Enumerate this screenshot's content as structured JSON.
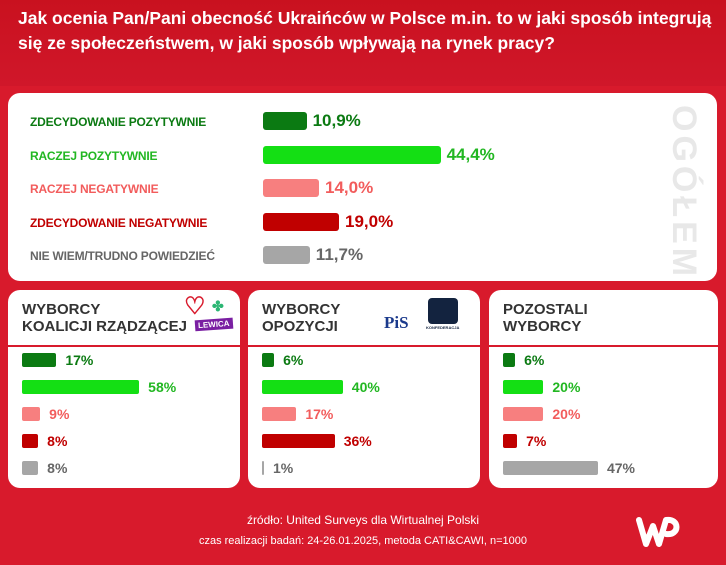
{
  "header": {
    "title": "Jak ocenia Pan/Pani obecność Ukraińców w Polsce m.in. to w jaki sposób integrują się ze społeczeństwem, w jaki sposób wpływają na rynek pracy?"
  },
  "colors": [
    "#0b7a12",
    "#14df14",
    "#f77f7f",
    "#c00000",
    "#a6a6a6"
  ],
  "text_colors": [
    "#0b7a12",
    "#22b722",
    "#f25c5c",
    "#c00000",
    "#666666"
  ],
  "chart_data": [
    {
      "type": "bar",
      "title": "OGÓŁEM",
      "categories": [
        "ZDECYDOWANIE POZYTYWNIE",
        "RACZEJ POZYTYWNIE",
        "RACZEJ NEGATYWNIE",
        "ZDECYDOWANIE NEGATYWNIE",
        "NIE WIEM/TRUDNO POWIEDZIEĆ"
      ],
      "values": [
        10.9,
        44.4,
        14.0,
        19.0,
        11.7
      ],
      "labels": [
        "10,9%",
        "44,4%",
        "14,0%",
        "19,0%",
        "11,7%"
      ]
    },
    {
      "type": "bar",
      "title": "WYBORCY KOALICJI RZĄDZĄCEJ",
      "values": [
        17,
        58,
        9,
        8,
        8
      ],
      "labels": [
        "17%",
        "58%",
        "9%",
        "8%",
        "8%"
      ]
    },
    {
      "type": "bar",
      "title": "WYBORCY OPOZYCJI",
      "values": [
        6,
        40,
        17,
        36,
        1
      ],
      "labels": [
        "6%",
        "40%",
        "17%",
        "36%",
        "1%"
      ]
    },
    {
      "type": "bar",
      "title": "POZOSTALI WYBORCY",
      "values": [
        6,
        20,
        20,
        7,
        47
      ],
      "labels": [
        "6%",
        "20%",
        "20%",
        "7%",
        "47%"
      ]
    }
  ],
  "panels": [
    {
      "title1": "WYBORCY",
      "title2": "KOALICJI RZĄDZĄCEJ",
      "logos": [
        "LEWICA"
      ]
    },
    {
      "title1": "WYBORCY",
      "title2": "OPOZYCJI",
      "logos": [
        "PiS",
        "KONFEDERACJA"
      ]
    },
    {
      "title1": "POZOSTALI",
      "title2": "WYBORCY",
      "logos": []
    }
  ],
  "footer": {
    "source": "źródło: United Surveys dla Wirtualnej Polski",
    "method": "czas realizacji badań: 24-26.01.2025, metoda CATI&CAWI, n=1000",
    "logo": "WP"
  }
}
